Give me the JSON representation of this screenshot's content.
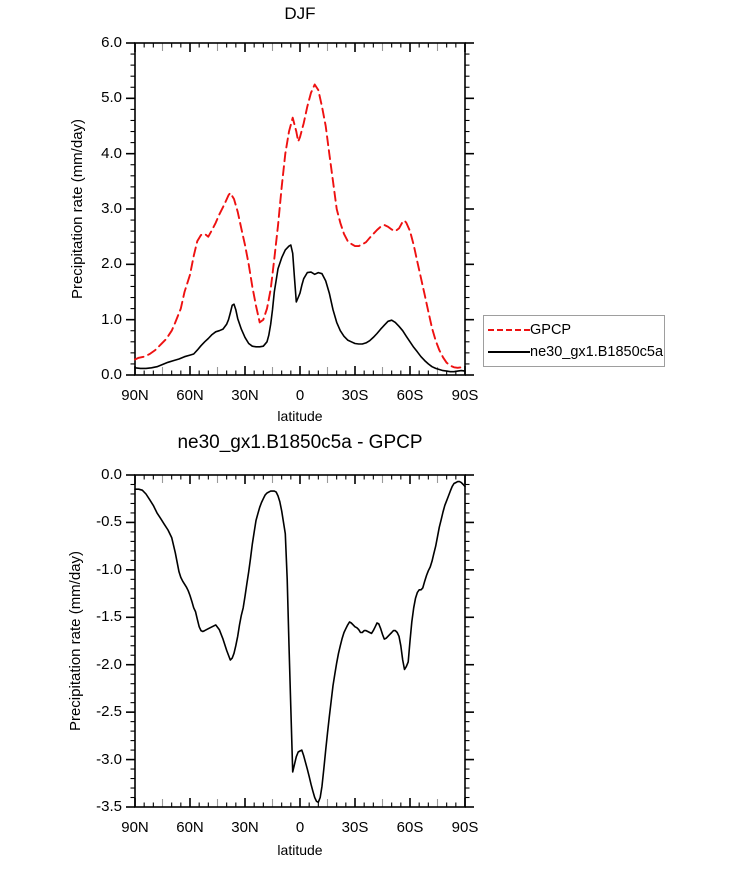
{
  "chart_data": [
    {
      "type": "line",
      "title": "DJF",
      "xlabel": "latitude",
      "ylabel": "Precipitation rate (mm/day)",
      "x_axis": {
        "range": [
          90,
          -90
        ],
        "ticks": {
          "values": [
            90,
            60,
            30,
            0,
            -30,
            -60,
            -90
          ],
          "labels": [
            "90N",
            "60N",
            "30N",
            "0",
            "30S",
            "60S",
            "90S"
          ]
        },
        "minor_step_deg": 5
      },
      "y_axis": {
        "range": [
          0,
          6
        ],
        "ticks": {
          "values": [
            0,
            1,
            2,
            3,
            4,
            5,
            6
          ],
          "labels": [
            "0.0",
            "1.0",
            "2.0",
            "3.0",
            "4.0",
            "5.0",
            "6.0"
          ]
        },
        "minor_step": 0.2
      },
      "legend": {
        "position": "outside-right",
        "border_color": "#9e9e9e"
      },
      "series": [
        {
          "name": "GPCP",
          "color": "#ee1111",
          "style": "dashed",
          "lat": [
            90,
            88,
            85,
            82,
            79,
            76,
            73,
            70,
            68,
            65,
            63,
            60,
            58,
            56,
            54,
            52,
            50,
            48,
            46,
            44,
            41,
            39,
            38,
            36,
            34,
            32,
            30,
            28,
            26,
            24,
            22,
            20,
            18,
            16,
            14,
            12,
            10,
            8,
            6,
            4,
            2,
            1,
            0,
            -2,
            -4,
            -6,
            -8,
            -10,
            -12,
            -14,
            -16,
            -18,
            -20,
            -22,
            -24,
            -26,
            -28,
            -30,
            -32,
            -34,
            -36,
            -38,
            -40,
            -42,
            -44,
            -46,
            -48,
            -50,
            -52,
            -54,
            -56,
            -57,
            -58,
            -60,
            -62,
            -64,
            -66,
            -68,
            -70,
            -72,
            -74,
            -76,
            -78,
            -80,
            -82,
            -84,
            -86,
            -88,
            -90
          ],
          "values": [
            0.28,
            0.31,
            0.33,
            0.38,
            0.45,
            0.55,
            0.65,
            0.8,
            0.95,
            1.2,
            1.5,
            1.81,
            2.15,
            2.42,
            2.53,
            2.55,
            2.5,
            2.62,
            2.75,
            2.9,
            3.1,
            3.25,
            3.29,
            3.18,
            2.95,
            2.65,
            2.35,
            2.0,
            1.6,
            1.25,
            0.95,
            1.0,
            1.2,
            1.55,
            2.1,
            2.7,
            3.4,
            4.0,
            4.4,
            4.65,
            4.4,
            4.22,
            4.3,
            4.55,
            4.85,
            5.1,
            5.25,
            5.15,
            4.85,
            4.5,
            4.0,
            3.5,
            3.0,
            2.75,
            2.55,
            2.42,
            2.37,
            2.33,
            2.33,
            2.36,
            2.4,
            2.48,
            2.55,
            2.62,
            2.68,
            2.71,
            2.68,
            2.63,
            2.6,
            2.65,
            2.77,
            2.79,
            2.75,
            2.6,
            2.35,
            2.05,
            1.75,
            1.45,
            1.15,
            0.85,
            0.62,
            0.45,
            0.32,
            0.22,
            0.17,
            0.14,
            0.13,
            0.14,
            0.16
          ]
        },
        {
          "name": "ne30_gx1.B1850c5a",
          "color": "#000000",
          "style": "solid",
          "lat": [
            90,
            87,
            84,
            81,
            78,
            75,
            72,
            69,
            66,
            63,
            60,
            58,
            56,
            54,
            52,
            50,
            48,
            46,
            44,
            42,
            40,
            39,
            38,
            37,
            36,
            35,
            34,
            32,
            30,
            28,
            26,
            24,
            22,
            20,
            18,
            17,
            16,
            15,
            14,
            12,
            10,
            8,
            6,
            5,
            4,
            3,
            2,
            1,
            0,
            -1,
            -2,
            -4,
            -6,
            -8,
            -10,
            -12,
            -14,
            -16,
            -18,
            -20,
            -22,
            -24,
            -26,
            -28,
            -30,
            -32,
            -34,
            -36,
            -38,
            -40,
            -42,
            -44,
            -46,
            -48,
            -50,
            -52,
            -54,
            -56,
            -58,
            -60,
            -62,
            -64,
            -66,
            -68,
            -70,
            -72,
            -74,
            -76,
            -78,
            -80,
            -82,
            -84,
            -86,
            -88,
            -90
          ],
          "values": [
            0.13,
            0.12,
            0.12,
            0.13,
            0.15,
            0.19,
            0.23,
            0.26,
            0.29,
            0.33,
            0.36,
            0.38,
            0.45,
            0.53,
            0.6,
            0.66,
            0.73,
            0.78,
            0.8,
            0.83,
            0.92,
            1.0,
            1.12,
            1.26,
            1.28,
            1.18,
            1.02,
            0.83,
            0.68,
            0.57,
            0.52,
            0.51,
            0.51,
            0.52,
            0.6,
            0.72,
            0.92,
            1.18,
            1.5,
            1.92,
            2.12,
            2.26,
            2.33,
            2.35,
            2.2,
            1.75,
            1.32,
            1.4,
            1.48,
            1.62,
            1.74,
            1.85,
            1.86,
            1.82,
            1.85,
            1.83,
            1.7,
            1.48,
            1.18,
            0.95,
            0.8,
            0.7,
            0.63,
            0.6,
            0.57,
            0.56,
            0.56,
            0.58,
            0.62,
            0.68,
            0.75,
            0.83,
            0.9,
            0.97,
            0.99,
            0.95,
            0.88,
            0.8,
            0.7,
            0.6,
            0.5,
            0.42,
            0.33,
            0.26,
            0.2,
            0.15,
            0.12,
            0.1,
            0.08,
            0.07,
            0.06,
            0.06,
            0.07,
            0.08,
            0.07
          ]
        }
      ]
    },
    {
      "type": "line",
      "title": "ne30_gx1.B1850c5a - GPCP",
      "xlabel": "latitude",
      "ylabel": "Precipitation rate (mm/day)",
      "x_axis": {
        "range": [
          90,
          -90
        ],
        "ticks": {
          "values": [
            90,
            60,
            30,
            0,
            -30,
            -60,
            -90
          ],
          "labels": [
            "90N",
            "60N",
            "30N",
            "0",
            "30S",
            "60S",
            "90S"
          ]
        },
        "minor_step_deg": 5
      },
      "y_axis": {
        "range": [
          -3.5,
          0
        ],
        "ticks": {
          "values": [
            0,
            -0.5,
            -1,
            -1.5,
            -2,
            -2.5,
            -3,
            -3.5
          ],
          "labels": [
            "0.0",
            "-0.5",
            "-1.0",
            "-1.5",
            "-2.0",
            "-2.5",
            "-3.0",
            "-3.5"
          ]
        },
        "minor_step": 0.1
      },
      "series": [
        {
          "name": "ne30_gx1.B1850c5a - GPCP",
          "color": "#000000",
          "style": "solid",
          "lat": [
            90,
            88,
            86,
            84,
            82,
            80,
            78,
            76,
            74,
            72,
            70,
            68,
            66,
            65,
            64,
            63,
            62,
            61,
            60,
            59,
            58,
            57,
            56,
            55,
            54,
            53,
            52,
            50,
            48,
            46,
            44,
            42,
            40,
            38,
            37,
            36,
            35,
            34,
            33,
            32,
            31,
            30,
            29,
            28,
            27,
            26,
            25,
            24,
            23,
            22,
            21,
            20,
            19,
            18,
            16,
            14,
            13,
            12,
            11,
            10,
            9,
            8,
            7,
            6,
            5,
            4,
            3,
            2,
            1,
            0,
            -1,
            -2,
            -3,
            -4,
            -5,
            -6,
            -7,
            -8,
            -9,
            -10,
            -11,
            -12,
            -13,
            -14,
            -15,
            -16,
            -17,
            -18,
            -19,
            -20,
            -21,
            -22,
            -23,
            -24,
            -25,
            -26,
            -27,
            -28,
            -29,
            -30,
            -31,
            -32,
            -33,
            -34,
            -35,
            -36,
            -37,
            -38,
            -39,
            -40,
            -41,
            -42,
            -43,
            -44,
            -45,
            -46,
            -47,
            -48,
            -49,
            -50,
            -51,
            -52,
            -53,
            -54,
            -55,
            -56,
            -57,
            -58,
            -59,
            -60,
            -61,
            -62,
            -63,
            -64,
            -65,
            -66,
            -67,
            -68,
            -69,
            -70,
            -71,
            -72,
            -73,
            -74,
            -75,
            -76,
            -77,
            -78,
            -79,
            -80,
            -81,
            -82,
            -83,
            -84,
            -85,
            -86,
            -87,
            -88,
            -89,
            -90
          ],
          "values": [
            -0.15,
            -0.15,
            -0.16,
            -0.2,
            -0.26,
            -0.32,
            -0.4,
            -0.46,
            -0.52,
            -0.58,
            -0.66,
            -0.82,
            -1.02,
            -1.08,
            -1.12,
            -1.15,
            -1.18,
            -1.22,
            -1.27,
            -1.33,
            -1.4,
            -1.44,
            -1.52,
            -1.6,
            -1.64,
            -1.65,
            -1.64,
            -1.62,
            -1.6,
            -1.58,
            -1.63,
            -1.73,
            -1.85,
            -1.95,
            -1.93,
            -1.88,
            -1.8,
            -1.7,
            -1.58,
            -1.48,
            -1.4,
            -1.28,
            -1.15,
            -1.02,
            -0.88,
            -0.73,
            -0.6,
            -0.48,
            -0.41,
            -0.34,
            -0.29,
            -0.25,
            -0.21,
            -0.19,
            -0.17,
            -0.17,
            -0.18,
            -0.22,
            -0.28,
            -0.38,
            -0.5,
            -0.62,
            -1.1,
            -1.8,
            -2.45,
            -3.13,
            -3.05,
            -2.97,
            -2.92,
            -2.91,
            -2.9,
            -2.96,
            -3.03,
            -3.1,
            -3.18,
            -3.26,
            -3.33,
            -3.4,
            -3.44,
            -3.45,
            -3.4,
            -3.28,
            -3.1,
            -2.9,
            -2.72,
            -2.55,
            -2.38,
            -2.22,
            -2.1,
            -1.98,
            -1.88,
            -1.8,
            -1.72,
            -1.66,
            -1.62,
            -1.58,
            -1.55,
            -1.56,
            -1.58,
            -1.6,
            -1.61,
            -1.63,
            -1.66,
            -1.66,
            -1.64,
            -1.64,
            -1.65,
            -1.66,
            -1.67,
            -1.64,
            -1.6,
            -1.56,
            -1.57,
            -1.62,
            -1.68,
            -1.73,
            -1.72,
            -1.7,
            -1.68,
            -1.66,
            -1.64,
            -1.64,
            -1.66,
            -1.7,
            -1.8,
            -1.95,
            -2.05,
            -2.02,
            -1.97,
            -1.75,
            -1.55,
            -1.4,
            -1.3,
            -1.24,
            -1.21,
            -1.21,
            -1.19,
            -1.12,
            -1.06,
            -1.01,
            -0.97,
            -0.91,
            -0.83,
            -0.75,
            -0.65,
            -0.55,
            -0.47,
            -0.39,
            -0.32,
            -0.27,
            -0.22,
            -0.17,
            -0.12,
            -0.09,
            -0.08,
            -0.07,
            -0.07,
            -0.08,
            -0.1,
            -0.12
          ]
        }
      ]
    }
  ]
}
